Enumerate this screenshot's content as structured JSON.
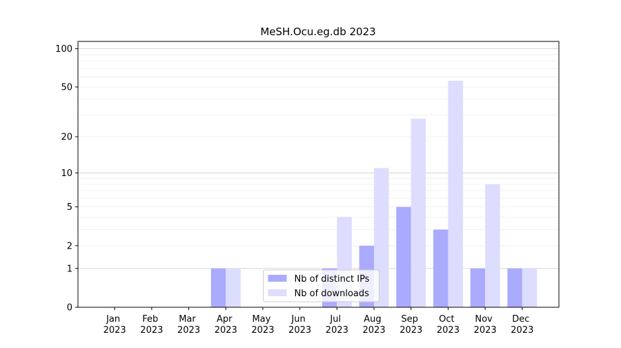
{
  "chart_data": {
    "type": "bar",
    "title": "MeSH.Ocu.eg.db 2023",
    "categories": [
      "Jan 2023",
      "Feb 2023",
      "Mar 2023",
      "Apr 2023",
      "May 2023",
      "Jun 2023",
      "Jul 2023",
      "Aug 2023",
      "Sep 2023",
      "Oct 2023",
      "Nov 2023",
      "Dec 2023"
    ],
    "series": [
      {
        "name": "Nb of distinct IPs",
        "color": "#aaaaff",
        "values": [
          0,
          0,
          0,
          1,
          0,
          0,
          1,
          2,
          5,
          3,
          1,
          1
        ]
      },
      {
        "name": "Nb of downloads",
        "color": "#ddddff",
        "values": [
          0,
          0,
          0,
          1,
          0,
          0,
          4,
          11,
          28,
          56,
          8,
          1
        ]
      }
    ],
    "y_scale": "log1p",
    "ylim": [
      0,
      114
    ],
    "yticks": [
      0,
      1,
      2,
      5,
      10,
      20,
      50,
      100
    ],
    "minor_yticks": [
      3,
      4,
      6,
      7,
      8,
      9,
      30,
      40,
      60,
      70,
      80,
      90
    ],
    "grid_major": [
      1,
      10,
      100
    ],
    "grid": true,
    "legend": "lower center"
  }
}
